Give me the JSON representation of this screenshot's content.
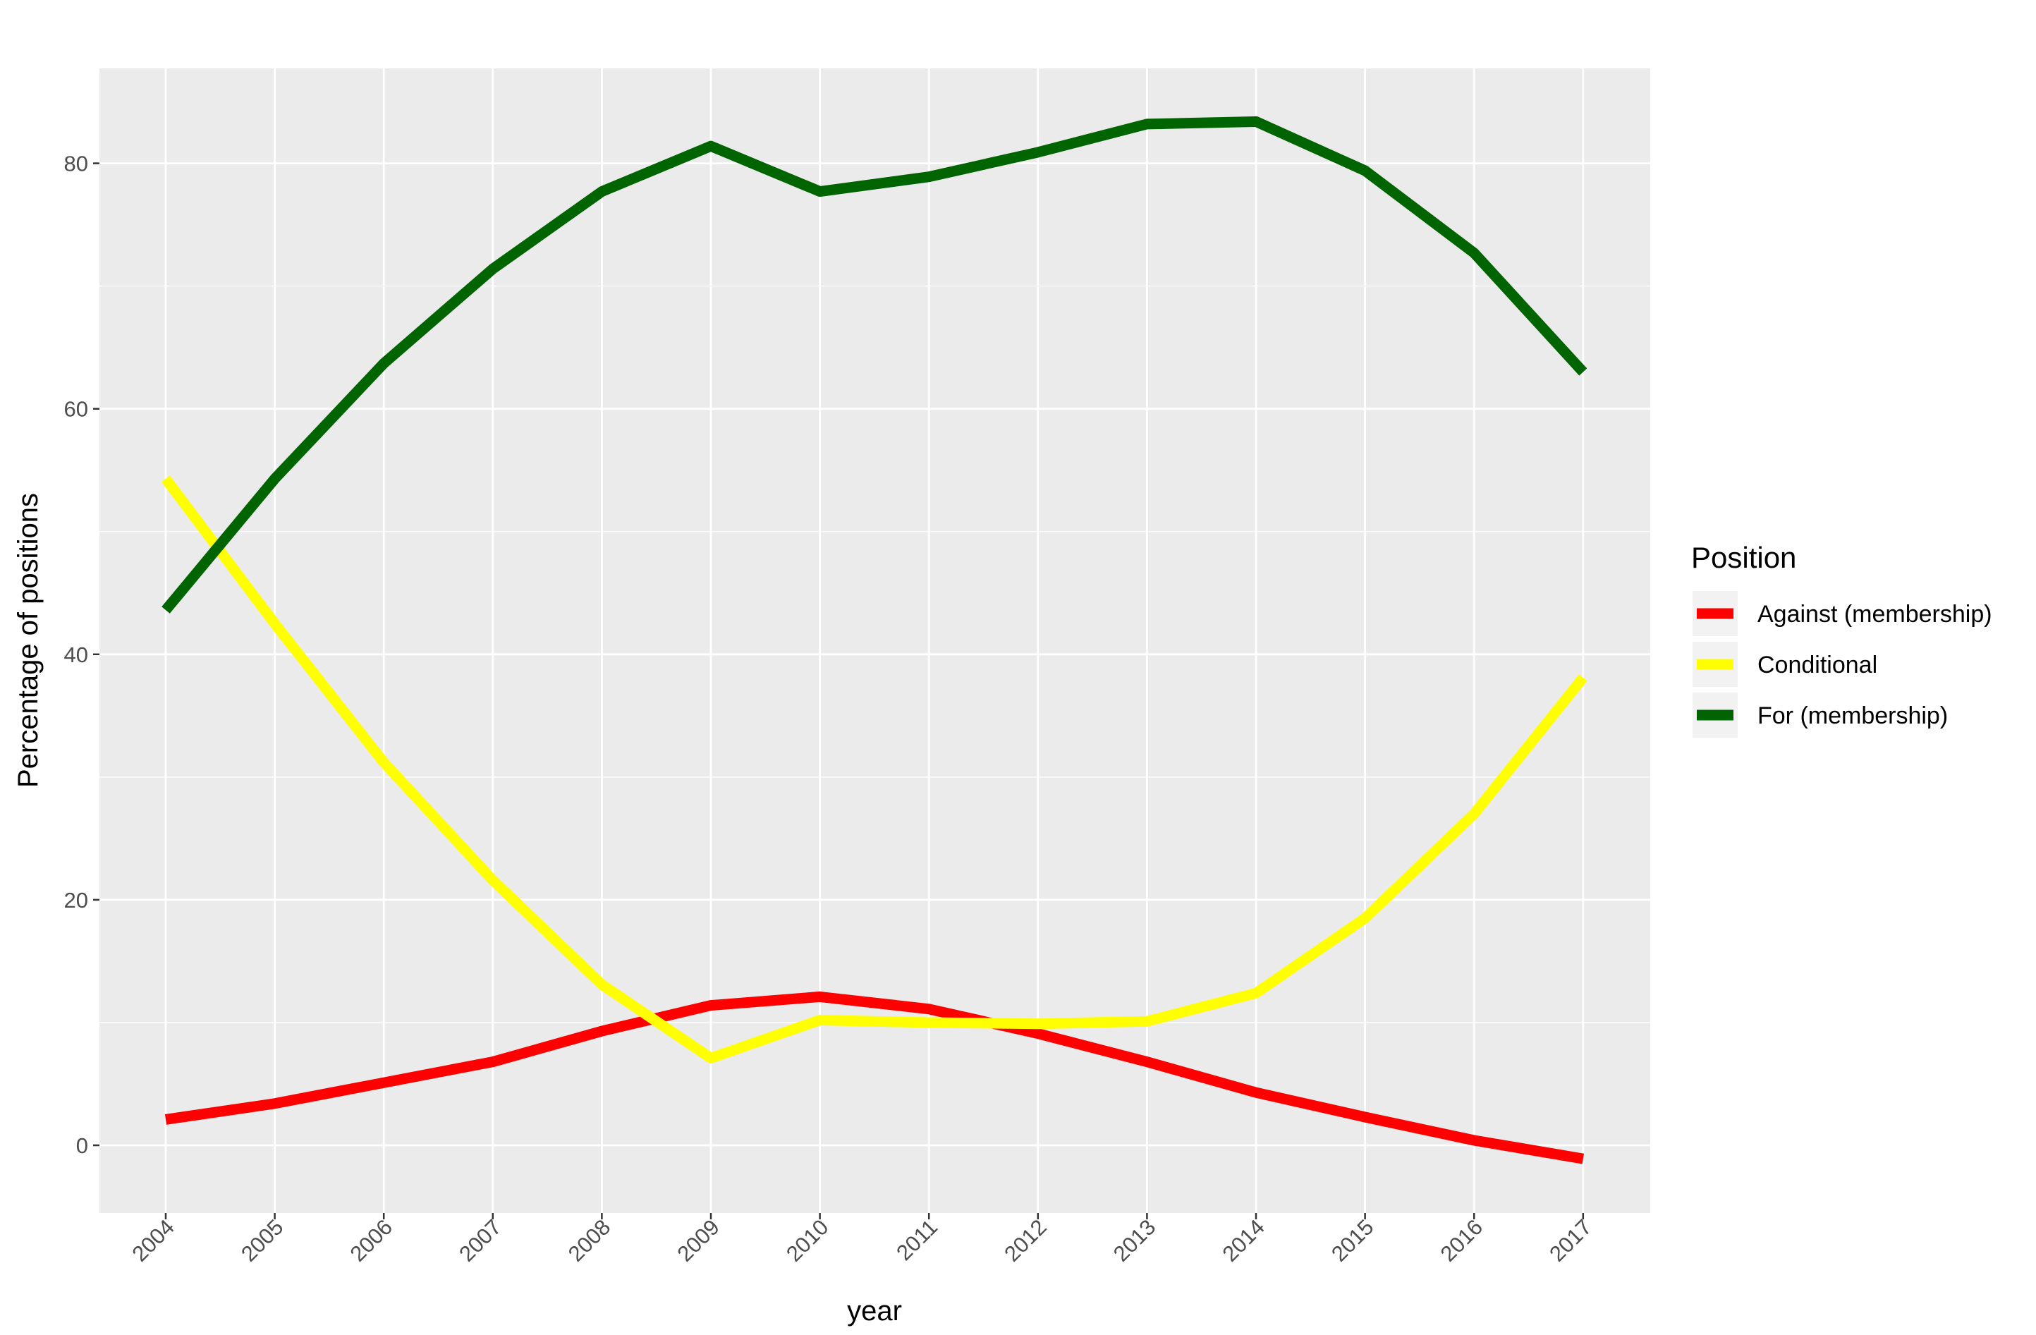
{
  "chart_data": {
    "type": "line",
    "title": "",
    "xlabel": "year",
    "ylabel": "Percentage of positions",
    "x": [
      "2004",
      "2005",
      "2006",
      "2007",
      "2008",
      "2009",
      "2010",
      "2011",
      "2012",
      "2013",
      "2014",
      "2015",
      "2016",
      "2017"
    ],
    "ylim": [
      -5.5,
      87.5
    ],
    "yticks": [
      0,
      20,
      40,
      60,
      80
    ],
    "ytick_labels": [
      "0",
      "20",
      "40",
      "60",
      "80"
    ],
    "grid": true,
    "legend": {
      "title": "Position",
      "placement": "right"
    },
    "series": [
      {
        "name": "Against (membership)",
        "color": "#ff0000",
        "values": [
          2.1,
          3.4,
          5.1,
          6.8,
          9.3,
          11.4,
          12.1,
          11.1,
          9.1,
          6.8,
          4.3,
          2.3,
          0.4,
          -1.1
        ]
      },
      {
        "name": "Conditional",
        "color": "#ffff00",
        "values": [
          54.3,
          42.5,
          31.2,
          21.6,
          13.1,
          7.1,
          10.2,
          10.0,
          9.9,
          10.1,
          12.4,
          18.5,
          27.0,
          38.1
        ]
      },
      {
        "name": "For (membership)",
        "color": "#006400",
        "values": [
          43.6,
          54.3,
          63.7,
          71.4,
          77.7,
          81.4,
          77.7,
          78.9,
          80.9,
          83.2,
          83.4,
          79.4,
          72.7,
          63.0
        ]
      }
    ]
  }
}
